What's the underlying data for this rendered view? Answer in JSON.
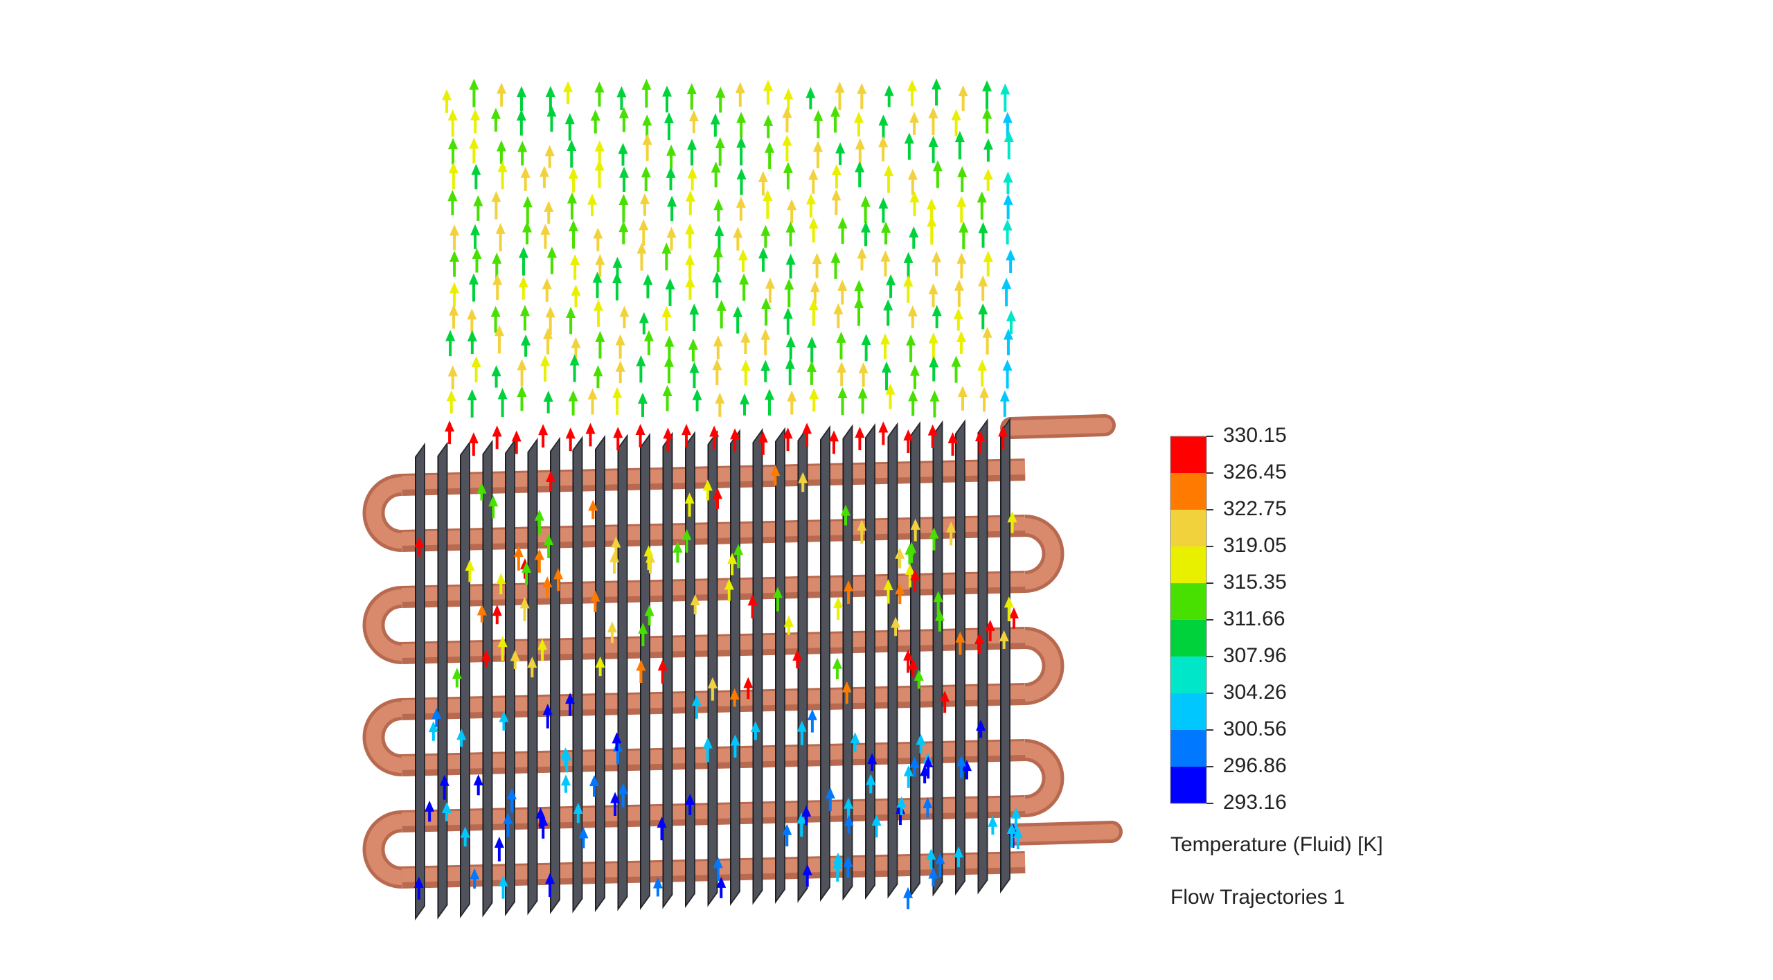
{
  "legend": {
    "ticks": [
      330.15,
      326.45,
      322.75,
      319.05,
      315.35,
      311.66,
      307.96,
      304.26,
      300.56,
      296.86,
      293.16
    ],
    "colors": [
      "#ff0000",
      "#ff7a00",
      "#f2d23c",
      "#e8f000",
      "#48e000",
      "#00d23c",
      "#00e6c8",
      "#00c8ff",
      "#0078ff",
      "#0000ff"
    ],
    "title": "Temperature (Fluid) [K]",
    "caption": "Flow Trajectories 1"
  }
}
